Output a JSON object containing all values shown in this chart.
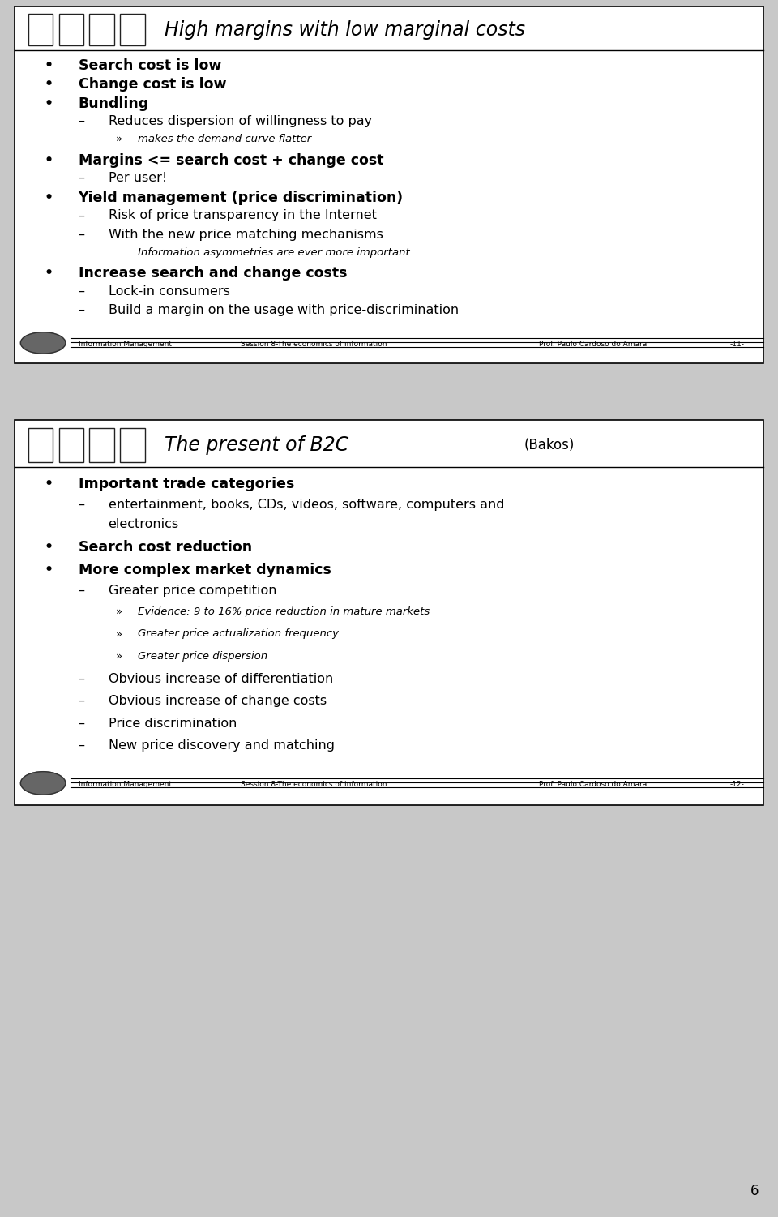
{
  "slide1": {
    "title": "High margins with low marginal costs",
    "content": [
      {
        "level": 1,
        "bullet": "•",
        "text": "Search cost is low",
        "bold": true
      },
      {
        "level": 1,
        "bullet": "•",
        "text": "Change cost is low",
        "bold": true
      },
      {
        "level": 1,
        "bullet": "•",
        "text": "Bundling",
        "bold": true
      },
      {
        "level": 2,
        "bullet": "–",
        "text": "Reduces dispersion of willingness to pay",
        "bold": false
      },
      {
        "level": 3,
        "bullet": "»",
        "text": "makes the demand curve flatter",
        "bold": false,
        "italic": true,
        "small": true
      },
      {
        "level": 1,
        "bullet": "•",
        "text": "Margins <= search cost + change cost",
        "bold": true
      },
      {
        "level": 2,
        "bullet": "–",
        "text": "Per user!",
        "bold": false
      },
      {
        "level": 1,
        "bullet": "•",
        "text": "Yield management (price discrimination)",
        "bold": true
      },
      {
        "level": 2,
        "bullet": "–",
        "text": "Risk of price transparency in the Internet",
        "bold": false
      },
      {
        "level": 2,
        "bullet": "–",
        "text": "With the new price matching mechanisms",
        "bold": false
      },
      {
        "level": 3,
        "bullet": "",
        "text": "Information asymmetries are ever more important",
        "bold": false,
        "italic": true,
        "small": true
      },
      {
        "level": 1,
        "bullet": "•",
        "text": "Increase search and change costs",
        "bold": true
      },
      {
        "level": 2,
        "bullet": "–",
        "text": "Lock-in consumers",
        "bold": false
      },
      {
        "level": 2,
        "bullet": "–",
        "text": "Build a margin on the usage with price-discrimination",
        "bold": false
      }
    ],
    "footer_left": "Information Management",
    "footer_center": "Session 8-The economics of information",
    "footer_right": "Prof. Paulo Cardoso do Amaral",
    "footer_page": "-11-"
  },
  "slide2": {
    "title": "The present of B2C",
    "title_suffix": "(Bakos)",
    "content": [
      {
        "level": 1,
        "bullet": "•",
        "text": "Important trade categories",
        "bold": true
      },
      {
        "level": 2,
        "bullet": "–",
        "text": "entertainment, books, CDs, videos, software, computers and\nelectronics",
        "bold": false
      },
      {
        "level": 1,
        "bullet": "•",
        "text": "Search cost reduction",
        "bold": true
      },
      {
        "level": 1,
        "bullet": "•",
        "text": "More complex market dynamics",
        "bold": true
      },
      {
        "level": 2,
        "bullet": "–",
        "text": "Greater price competition",
        "bold": false
      },
      {
        "level": 3,
        "bullet": "»",
        "text": "Evidence: 9 to 16% price reduction in mature markets",
        "bold": false,
        "italic": true,
        "small": true
      },
      {
        "level": 3,
        "bullet": "»",
        "text": "Greater price actualization frequency",
        "bold": false,
        "italic": true,
        "small": true
      },
      {
        "level": 3,
        "bullet": "»",
        "text": "Greater price dispersion",
        "bold": false,
        "italic": true,
        "small": true
      },
      {
        "level": 2,
        "bullet": "–",
        "text": "Obvious increase of differentiation",
        "bold": false
      },
      {
        "level": 2,
        "bullet": "–",
        "text": "Obvious increase of change costs",
        "bold": false
      },
      {
        "level": 2,
        "bullet": "–",
        "text": "Price discrimination",
        "bold": false
      },
      {
        "level": 2,
        "bullet": "–",
        "text": "New price discovery and matching",
        "bold": false
      }
    ],
    "footer_left": "Information Management",
    "footer_center": "Session 8-The economics of information",
    "footer_right": "Prof. Paulo Cardoso do Amaral",
    "footer_page": "-12-"
  },
  "outer_bg": "#c8c8c8",
  "slide_bg": "#ffffff",
  "border_color": "#000000",
  "text_color": "#000000",
  "page_number": "6"
}
